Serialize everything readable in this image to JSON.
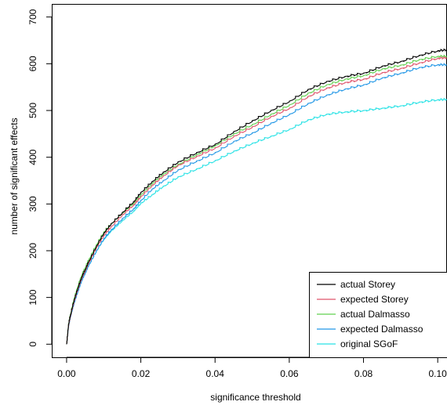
{
  "chart_data": {
    "type": "line",
    "title": "",
    "xlabel": "significance threshold",
    "ylabel": "number of significant effects",
    "xlim": [
      -0.004,
      0.1025
    ],
    "ylim": [
      -28,
      728
    ],
    "x_ticks": [
      0.0,
      0.02,
      0.04,
      0.06,
      0.08,
      0.1
    ],
    "x_tick_labels": [
      "0.00",
      "0.02",
      "0.04",
      "0.06",
      "0.08",
      "0.10"
    ],
    "y_ticks": [
      0,
      100,
      200,
      300,
      400,
      500,
      600,
      700
    ],
    "y_tick_labels": [
      "0",
      "100",
      "200",
      "300",
      "400",
      "500",
      "600",
      "700"
    ],
    "grid": false,
    "legend_position": "bottom-right",
    "x": [
      0.0,
      0.0005,
      0.001,
      0.002,
      0.003,
      0.004,
      0.005,
      0.006,
      0.008,
      0.01,
      0.012,
      0.015,
      0.018,
      0.02,
      0.023,
      0.026,
      0.03,
      0.035,
      0.04,
      0.045,
      0.05,
      0.055,
      0.06,
      0.065,
      0.07,
      0.075,
      0.08,
      0.085,
      0.09,
      0.095,
      0.1,
      0.1025
    ],
    "series": [
      {
        "name": "actual Storey",
        "color": "#000000",
        "values": [
          0,
          42,
          62,
          95,
          120,
          143,
          160,
          178,
          210,
          238,
          258,
          282,
          305,
          325,
          348,
          368,
          390,
          410,
          428,
          455,
          478,
          500,
          520,
          545,
          562,
          573,
          580,
          595,
          605,
          618,
          628,
          630
        ]
      },
      {
        "name": "expected Storey",
        "color": "#df536b",
        "values": [
          0,
          40,
          60,
          92,
          117,
          140,
          157,
          175,
          207,
          233,
          252,
          277,
          298,
          316,
          340,
          360,
          383,
          402,
          420,
          445,
          465,
          487,
          505,
          530,
          548,
          560,
          567,
          581,
          590,
          602,
          612,
          613
        ]
      },
      {
        "name": "actual Dalmasso",
        "color": "#61d04f",
        "values": [
          0,
          43,
          64,
          98,
          124,
          147,
          164,
          182,
          213,
          240,
          258,
          281,
          302,
          320,
          344,
          364,
          385,
          406,
          425,
          450,
          470,
          492,
          512,
          537,
          555,
          567,
          575,
          589,
          597,
          609,
          616,
          616
        ]
      },
      {
        "name": "expected Dalmasso",
        "color": "#2297e6",
        "values": [
          0,
          38,
          58,
          88,
          112,
          135,
          152,
          170,
          200,
          226,
          245,
          269,
          290,
          308,
          332,
          350,
          373,
          392,
          410,
          434,
          452,
          473,
          492,
          515,
          533,
          546,
          555,
          570,
          580,
          592,
          598,
          598
        ]
      },
      {
        "name": "original SGoF",
        "color": "#28e2e5",
        "values": [
          0,
          40,
          60,
          92,
          115,
          138,
          154,
          171,
          200,
          225,
          243,
          265,
          285,
          302,
          320,
          338,
          358,
          375,
          393,
          413,
          430,
          445,
          460,
          480,
          492,
          497,
          500,
          505,
          510,
          518,
          523,
          524
        ]
      }
    ]
  }
}
